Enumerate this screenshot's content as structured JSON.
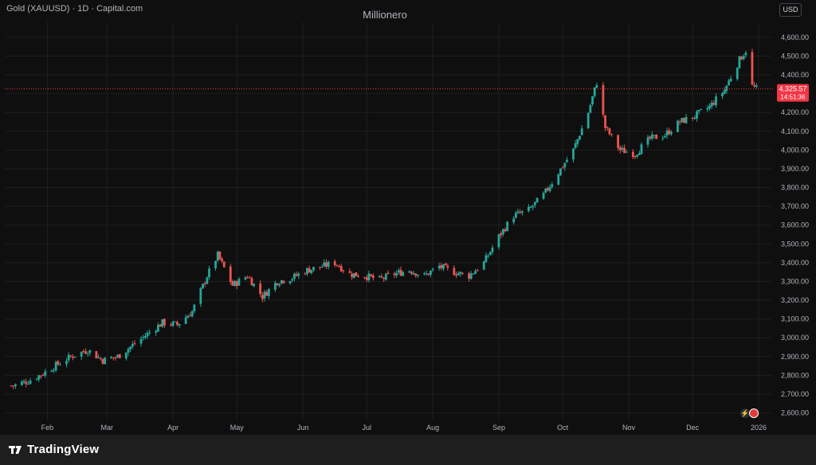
{
  "header": {
    "symbol": "Gold (XAUUSD) · 1D · Capital.com",
    "title": "Millionero",
    "currency": "USD"
  },
  "footer": {
    "brand": "TradingView"
  },
  "price_marker": {
    "price": "4,325.57",
    "countdown": "14:51:36"
  },
  "colors": {
    "up": "#26a69a",
    "down": "#ef5350",
    "background": "#0f0f0f",
    "grid": "#1f1f1f",
    "marker": "#f23645"
  },
  "icons": [
    "bolt-icon",
    "us-flag-icon",
    "tradingview-logo-icon"
  ],
  "chart_data": {
    "type": "candlestick",
    "y_axis_labels": [
      "4,600.00",
      "4,500.00",
      "4,400.00",
      "4,300.00",
      "4,200.00",
      "4,100.00",
      "4,000.00",
      "3,900.00",
      "3,800.00",
      "3,700.00",
      "3,600.00",
      "3,500.00",
      "3,400.00",
      "3,300.00",
      "3,200.00",
      "3,100.00",
      "3,000.00",
      "2,900.00",
      "2,800.00",
      "2,700.00",
      "2,600.00"
    ],
    "ylim": [
      2560,
      4680
    ],
    "y_ticks": [
      4600,
      4500,
      4400,
      4300,
      4200,
      4100,
      4000,
      3900,
      3800,
      3700,
      3600,
      3500,
      3400,
      3300,
      3200,
      3100,
      3000,
      2900,
      2800,
      2700,
      2600
    ],
    "x_labels": [
      "Feb",
      "Mar",
      "Apr",
      "May",
      "Jun",
      "Jul",
      "Aug",
      "Sep",
      "Oct",
      "Nov",
      "Dec",
      "2026"
    ],
    "x_label_dates": [
      "2025-02-01",
      "2025-03-01",
      "2025-04-01",
      "2025-05-01",
      "2025-06-01",
      "2025-07-01",
      "2025-08-01",
      "2025-09-01",
      "2025-10-01",
      "2025-11-01",
      "2025-12-01",
      "2026-01-01"
    ],
    "last_price": 4325.57,
    "series": {
      "dates": [
        "2025-01-16",
        "2025-01-23",
        "2025-01-30",
        "2025-02-06",
        "2025-02-13",
        "2025-02-20",
        "2025-02-27",
        "2025-03-06",
        "2025-03-13",
        "2025-03-20",
        "2025-03-27",
        "2025-04-03",
        "2025-04-10",
        "2025-04-17",
        "2025-04-22",
        "2025-04-29",
        "2025-05-06",
        "2025-05-13",
        "2025-05-20",
        "2025-05-27",
        "2025-06-03",
        "2025-06-10",
        "2025-06-16",
        "2025-06-23",
        "2025-06-30",
        "2025-07-07",
        "2025-07-14",
        "2025-07-21",
        "2025-07-28",
        "2025-08-04",
        "2025-08-11",
        "2025-08-18",
        "2025-08-25",
        "2025-09-01",
        "2025-09-08",
        "2025-09-15",
        "2025-09-22",
        "2025-09-29",
        "2025-10-06",
        "2025-10-13",
        "2025-10-17",
        "2025-10-21",
        "2025-10-28",
        "2025-11-04",
        "2025-11-11",
        "2025-11-18",
        "2025-11-25",
        "2025-12-02",
        "2025-12-09",
        "2025-12-16",
        "2025-12-23",
        "2025-12-26",
        "2025-12-29",
        "2025-12-31"
      ],
      "close": [
        2745,
        2770,
        2810,
        2860,
        2905,
        2935,
        2880,
        2900,
        2960,
        3020,
        3080,
        3070,
        3140,
        3330,
        3440,
        3280,
        3330,
        3220,
        3300,
        3320,
        3360,
        3380,
        3400,
        3340,
        3330,
        3310,
        3340,
        3360,
        3330,
        3380,
        3350,
        3330,
        3400,
        3540,
        3650,
        3680,
        3760,
        3880,
        4000,
        4200,
        4360,
        4120,
        4000,
        3980,
        4060,
        4080,
        4150,
        4180,
        4230,
        4320,
        4480,
        4530,
        4340,
        4325.57
      ]
    }
  }
}
